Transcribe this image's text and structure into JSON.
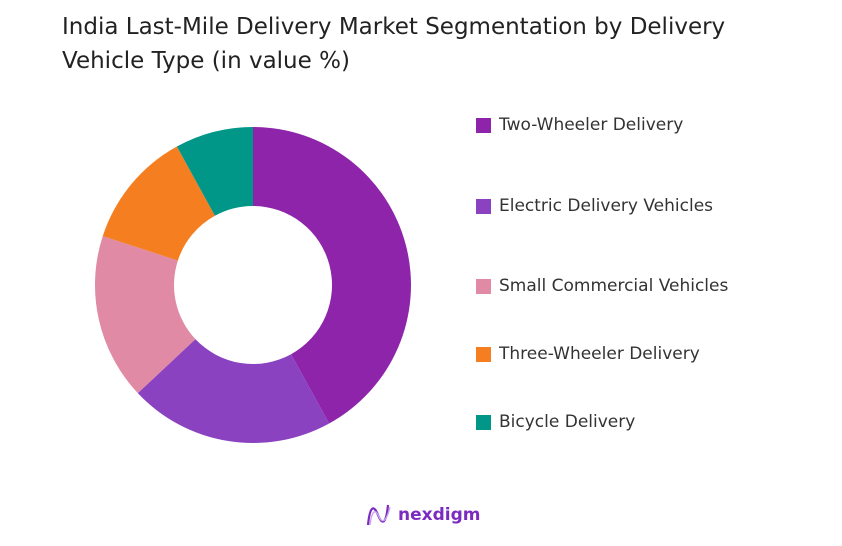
{
  "chart_data": {
    "type": "pie",
    "donut": true,
    "title": "India Last-Mile Delivery Market Segmentation by Delivery Vehicle Type (in value %)",
    "unit": "%",
    "legend_position": "right",
    "categories": [
      "Two-Wheeler Delivery",
      "Electric Delivery Vehicles",
      "Small Commercial Vehicles",
      "Three-Wheeler Delivery",
      "Bicycle Delivery"
    ],
    "values": [
      42,
      21,
      17,
      12,
      8
    ],
    "colors": [
      "#8e24aa",
      "#8a42c0",
      "#e08aa5",
      "#f57f20",
      "#009688"
    ]
  },
  "brand": {
    "name": "nexdigm",
    "color": "#7b2bbf"
  }
}
